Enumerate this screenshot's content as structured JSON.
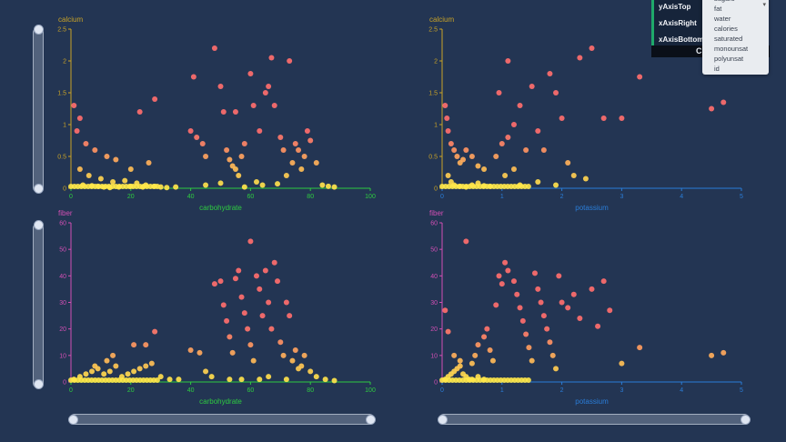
{
  "config": {
    "rows": [
      "yAxisTop",
      "xAxisRight",
      "xAxisBottom"
    ],
    "strip_text": "C"
  },
  "dropdown": {
    "options": [
      "sugars",
      "fat",
      "water",
      "calories",
      "saturated",
      "monounsat",
      "polyunsat",
      "id"
    ]
  },
  "colors": {
    "background": "#233553",
    "x_axis_left": "#2ecc40",
    "x_axis_right": "#2a7dd8",
    "y_axis_top": "#c8a227",
    "y_axis_bottom": "#d24fb4",
    "point_high": "#ff6e6e",
    "point_low": "#ffe84a"
  },
  "chart_data": [
    {
      "type": "scatter",
      "xlabel": "carbohydrate",
      "ylabel": "calcium",
      "xlim": [
        0,
        100
      ],
      "ylim": [
        0,
        2.5
      ],
      "xticks": [
        0,
        20,
        40,
        60,
        80,
        100
      ],
      "yticks": [
        0,
        0.5,
        1,
        1.5,
        2,
        2.5
      ],
      "points": [
        [
          1,
          1.3
        ],
        [
          3,
          1.1
        ],
        [
          2,
          0.9
        ],
        [
          5,
          0.7
        ],
        [
          8,
          0.6
        ],
        [
          12,
          0.5
        ],
        [
          15,
          0.45
        ],
        [
          3,
          0.3
        ],
        [
          6,
          0.2
        ],
        [
          10,
          0.15
        ],
        [
          14,
          0.1
        ],
        [
          18,
          0.12
        ],
        [
          22,
          0.08
        ],
        [
          25,
          0.05
        ],
        [
          28,
          0.03
        ],
        [
          30,
          0.02
        ],
        [
          4,
          0.05
        ],
        [
          7,
          0.04
        ],
        [
          9,
          0.03
        ],
        [
          11,
          0.02
        ],
        [
          13,
          0.01
        ],
        [
          16,
          0.02
        ],
        [
          20,
          0.03
        ],
        [
          24,
          0.02
        ],
        [
          32,
          0.01
        ],
        [
          35,
          0.02
        ],
        [
          20,
          0.3
        ],
        [
          26,
          0.4
        ],
        [
          28,
          1.4
        ],
        [
          23,
          1.2
        ],
        [
          40,
          0.9
        ],
        [
          42,
          0.8
        ],
        [
          44,
          0.7
        ],
        [
          45,
          0.5
        ],
        [
          41,
          1.75
        ],
        [
          48,
          2.2
        ],
        [
          50,
          1.6
        ],
        [
          51,
          1.2
        ],
        [
          52,
          0.6
        ],
        [
          53,
          0.45
        ],
        [
          54,
          0.35
        ],
        [
          55,
          0.3
        ],
        [
          56,
          0.2
        ],
        [
          57,
          0.5
        ],
        [
          58,
          0.7
        ],
        [
          55,
          1.2
        ],
        [
          60,
          1.8
        ],
        [
          61,
          1.3
        ],
        [
          63,
          0.9
        ],
        [
          65,
          1.5
        ],
        [
          66,
          1.6
        ],
        [
          67,
          2.05
        ],
        [
          68,
          1.3
        ],
        [
          70,
          0.8
        ],
        [
          71,
          0.6
        ],
        [
          72,
          0.2
        ],
        [
          73,
          2.0
        ],
        [
          74,
          0.4
        ],
        [
          75,
          0.7
        ],
        [
          76,
          0.6
        ],
        [
          77,
          0.3
        ],
        [
          78,
          0.5
        ],
        [
          79,
          0.9
        ],
        [
          80,
          0.75
        ],
        [
          82,
          0.4
        ],
        [
          84,
          0.05
        ],
        [
          86,
          0.03
        ],
        [
          88,
          0.02
        ],
        [
          62,
          0.1
        ],
        [
          64,
          0.05
        ],
        [
          69,
          0.07
        ],
        [
          45,
          0.05
        ],
        [
          50,
          0.08
        ],
        [
          58,
          0.02
        ]
      ]
    },
    {
      "type": "scatter",
      "xlabel": "potassium",
      "ylabel": "calcium",
      "xlim": [
        0,
        5
      ],
      "ylim": [
        0,
        2.5
      ],
      "xticks": [
        0,
        1,
        2,
        3,
        4,
        5
      ],
      "yticks": [
        0,
        0.5,
        1,
        1.5,
        2,
        2.5
      ],
      "points": [
        [
          0.05,
          1.3
        ],
        [
          0.08,
          1.1
        ],
        [
          0.1,
          0.9
        ],
        [
          0.15,
          0.7
        ],
        [
          0.2,
          0.6
        ],
        [
          0.25,
          0.5
        ],
        [
          0.3,
          0.4
        ],
        [
          0.35,
          0.45
        ],
        [
          0.4,
          0.6
        ],
        [
          0.5,
          0.5
        ],
        [
          0.6,
          0.35
        ],
        [
          0.1,
          0.2
        ],
        [
          0.15,
          0.1
        ],
        [
          0.2,
          0.05
        ],
        [
          0.3,
          0.03
        ],
        [
          0.4,
          0.02
        ],
        [
          0.5,
          0.05
        ],
        [
          0.6,
          0.08
        ],
        [
          0.7,
          0.04
        ],
        [
          0.8,
          0.03
        ],
        [
          0.9,
          0.5
        ],
        [
          1.0,
          0.7
        ],
        [
          1.1,
          0.8
        ],
        [
          1.2,
          1.0
        ],
        [
          0.95,
          1.5
        ],
        [
          1.1,
          2.0
        ],
        [
          1.3,
          1.3
        ],
        [
          1.5,
          1.6
        ],
        [
          1.6,
          0.9
        ],
        [
          1.7,
          0.6
        ],
        [
          1.8,
          1.8
        ],
        [
          1.9,
          1.5
        ],
        [
          2.0,
          1.1
        ],
        [
          2.1,
          0.4
        ],
        [
          2.2,
          0.2
        ],
        [
          2.3,
          2.05
        ],
        [
          2.5,
          2.2
        ],
        [
          2.7,
          1.1
        ],
        [
          3.0,
          1.1
        ],
        [
          3.3,
          1.75
        ],
        [
          4.5,
          1.25
        ],
        [
          4.7,
          1.35
        ],
        [
          1.3,
          0.05
        ],
        [
          1.6,
          0.1
        ],
        [
          1.2,
          0.3
        ],
        [
          0.7,
          0.3
        ],
        [
          1.4,
          0.6
        ],
        [
          2.4,
          0.15
        ],
        [
          1.05,
          0.2
        ],
        [
          1.9,
          0.05
        ]
      ]
    },
    {
      "type": "scatter",
      "xlabel": "carbohydrate",
      "ylabel": "fiber",
      "xlim": [
        0,
        100
      ],
      "ylim": [
        0,
        60
      ],
      "xticks": [
        0,
        20,
        40,
        60,
        80,
        100
      ],
      "yticks": [
        0,
        10,
        20,
        30,
        40,
        50,
        60
      ],
      "points": [
        [
          1,
          1
        ],
        [
          3,
          2
        ],
        [
          5,
          3
        ],
        [
          7,
          4
        ],
        [
          9,
          5
        ],
        [
          11,
          3
        ],
        [
          13,
          4
        ],
        [
          15,
          6
        ],
        [
          17,
          2
        ],
        [
          19,
          3
        ],
        [
          21,
          4
        ],
        [
          23,
          5
        ],
        [
          25,
          6
        ],
        [
          27,
          7
        ],
        [
          12,
          8
        ],
        [
          8,
          6
        ],
        [
          14,
          10
        ],
        [
          21,
          14
        ],
        [
          28,
          19
        ],
        [
          25,
          14
        ],
        [
          30,
          2
        ],
        [
          33,
          1
        ],
        [
          36,
          1
        ],
        [
          40,
          12
        ],
        [
          43,
          11
        ],
        [
          45,
          4
        ],
        [
          48,
          37
        ],
        [
          50,
          38
        ],
        [
          51,
          29
        ],
        [
          52,
          23
        ],
        [
          53,
          17
        ],
        [
          54,
          11
        ],
        [
          55,
          39
        ],
        [
          56,
          42
        ],
        [
          57,
          32
        ],
        [
          58,
          26
        ],
        [
          59,
          20
        ],
        [
          60,
          14
        ],
        [
          61,
          8
        ],
        [
          62,
          40
        ],
        [
          63,
          35
        ],
        [
          64,
          25
        ],
        [
          65,
          42
        ],
        [
          66,
          30
        ],
        [
          67,
          20
        ],
        [
          68,
          45
        ],
        [
          69,
          38
        ],
        [
          70,
          15
        ],
        [
          71,
          10
        ],
        [
          72,
          30
        ],
        [
          73,
          25
        ],
        [
          74,
          8
        ],
        [
          75,
          12
        ],
        [
          76,
          5
        ],
        [
          77,
          6
        ],
        [
          78,
          10
        ],
        [
          80,
          4
        ],
        [
          82,
          2
        ],
        [
          85,
          1
        ],
        [
          88,
          0.5
        ],
        [
          60,
          53
        ],
        [
          47,
          2
        ],
        [
          53,
          1
        ],
        [
          57,
          1
        ],
        [
          63,
          1
        ],
        [
          66,
          2
        ],
        [
          72,
          1
        ]
      ]
    },
    {
      "type": "scatter",
      "xlabel": "potassium",
      "ylabel": "fiber",
      "xlim": [
        0,
        5
      ],
      "ylim": [
        0,
        60
      ],
      "xticks": [
        0,
        1,
        2,
        3,
        4,
        5
      ],
      "yticks": [
        0,
        10,
        20,
        30,
        40,
        50,
        60
      ],
      "points": [
        [
          0.05,
          1
        ],
        [
          0.1,
          2
        ],
        [
          0.15,
          3
        ],
        [
          0.2,
          4
        ],
        [
          0.25,
          5
        ],
        [
          0.3,
          6
        ],
        [
          0.35,
          3
        ],
        [
          0.4,
          2
        ],
        [
          0.45,
          1
        ],
        [
          0.5,
          7
        ],
        [
          0.55,
          10
        ],
        [
          0.6,
          14
        ],
        [
          0.7,
          17
        ],
        [
          0.75,
          20
        ],
        [
          0.8,
          12
        ],
        [
          0.85,
          8
        ],
        [
          0.9,
          29
        ],
        [
          0.95,
          40
        ],
        [
          1.0,
          37
        ],
        [
          1.05,
          45
        ],
        [
          1.1,
          42
        ],
        [
          1.2,
          38
        ],
        [
          1.25,
          33
        ],
        [
          1.3,
          28
        ],
        [
          1.35,
          23
        ],
        [
          1.4,
          18
        ],
        [
          1.45,
          13
        ],
        [
          1.5,
          8
        ],
        [
          1.55,
          41
        ],
        [
          1.6,
          35
        ],
        [
          1.65,
          30
        ],
        [
          1.7,
          25
        ],
        [
          1.75,
          20
        ],
        [
          1.8,
          15
        ],
        [
          1.85,
          10
        ],
        [
          1.9,
          5
        ],
        [
          1.95,
          40
        ],
        [
          2.0,
          30
        ],
        [
          2.1,
          28
        ],
        [
          2.2,
          33
        ],
        [
          2.3,
          24
        ],
        [
          2.5,
          35
        ],
        [
          2.6,
          21
        ],
        [
          2.7,
          38
        ],
        [
          2.8,
          27
        ],
        [
          3.0,
          7
        ],
        [
          3.3,
          13
        ],
        [
          4.5,
          10
        ],
        [
          4.7,
          11
        ],
        [
          0.4,
          53
        ],
        [
          0.05,
          27
        ],
        [
          0.1,
          19
        ],
        [
          0.2,
          10
        ],
        [
          0.3,
          8
        ],
        [
          0.5,
          1
        ],
        [
          0.6,
          2
        ],
        [
          0.7,
          1
        ]
      ]
    }
  ]
}
